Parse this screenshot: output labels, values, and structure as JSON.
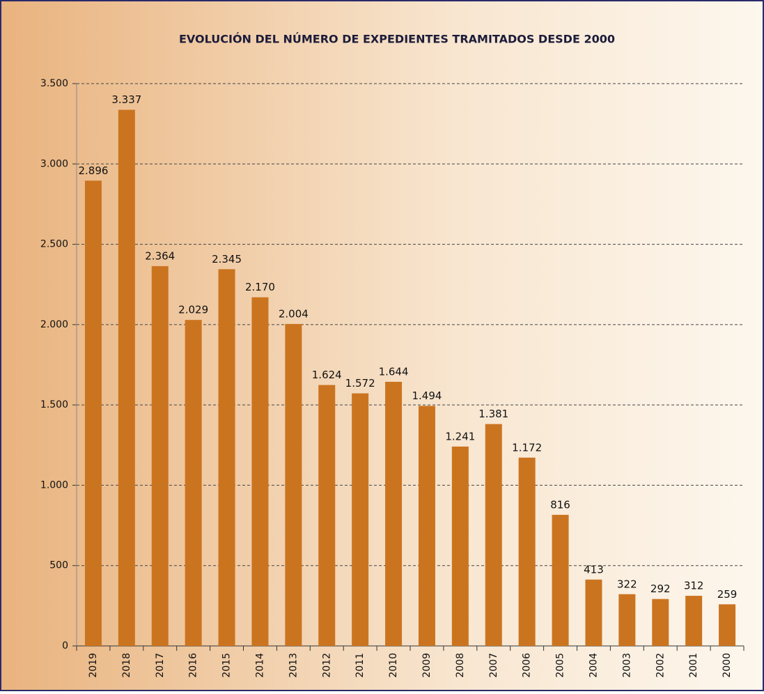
{
  "chart_data": {
    "type": "bar",
    "title": "EVOLUCIÓN DEL NÚMERO DE EXPEDIENTES TRAMITADOS DESDE 2000",
    "categories": [
      "2019",
      "2018",
      "2017",
      "2016",
      "2015",
      "2014",
      "2013",
      "2012",
      "2011",
      "2010",
      "2009",
      "2008",
      "2007",
      "2006",
      "2005",
      "2004",
      "2003",
      "2002",
      "2001",
      "2000"
    ],
    "values": [
      2896,
      3337,
      2364,
      2029,
      2345,
      2170,
      2004,
      1624,
      1572,
      1644,
      1494,
      1241,
      1381,
      1172,
      816,
      413,
      322,
      292,
      312,
      259
    ],
    "value_labels": [
      "2.896",
      "3.337",
      "2.364",
      "2.029",
      "2.345",
      "2.170",
      "2.004",
      "1.624",
      "1.572",
      "1.644",
      "1.494",
      "1.241",
      "1.381",
      "1.172",
      "816",
      "413",
      "322",
      "292",
      "312",
      "259"
    ],
    "color": "#cb741f",
    "ylim": [
      0,
      3500
    ],
    "yticks": [
      0,
      500,
      {
        "value": 1000,
        "label": "1.000"
      },
      {
        "value": 1500,
        "label": "1.500"
      },
      {
        "value": 2000,
        "label": "2.000"
      },
      {
        "value": 2500,
        "label": "2.500"
      },
      {
        "value": 3000,
        "label": "3.000"
      },
      {
        "value": 3500,
        "label": "3.500"
      }
    ],
    "grid": true
  }
}
